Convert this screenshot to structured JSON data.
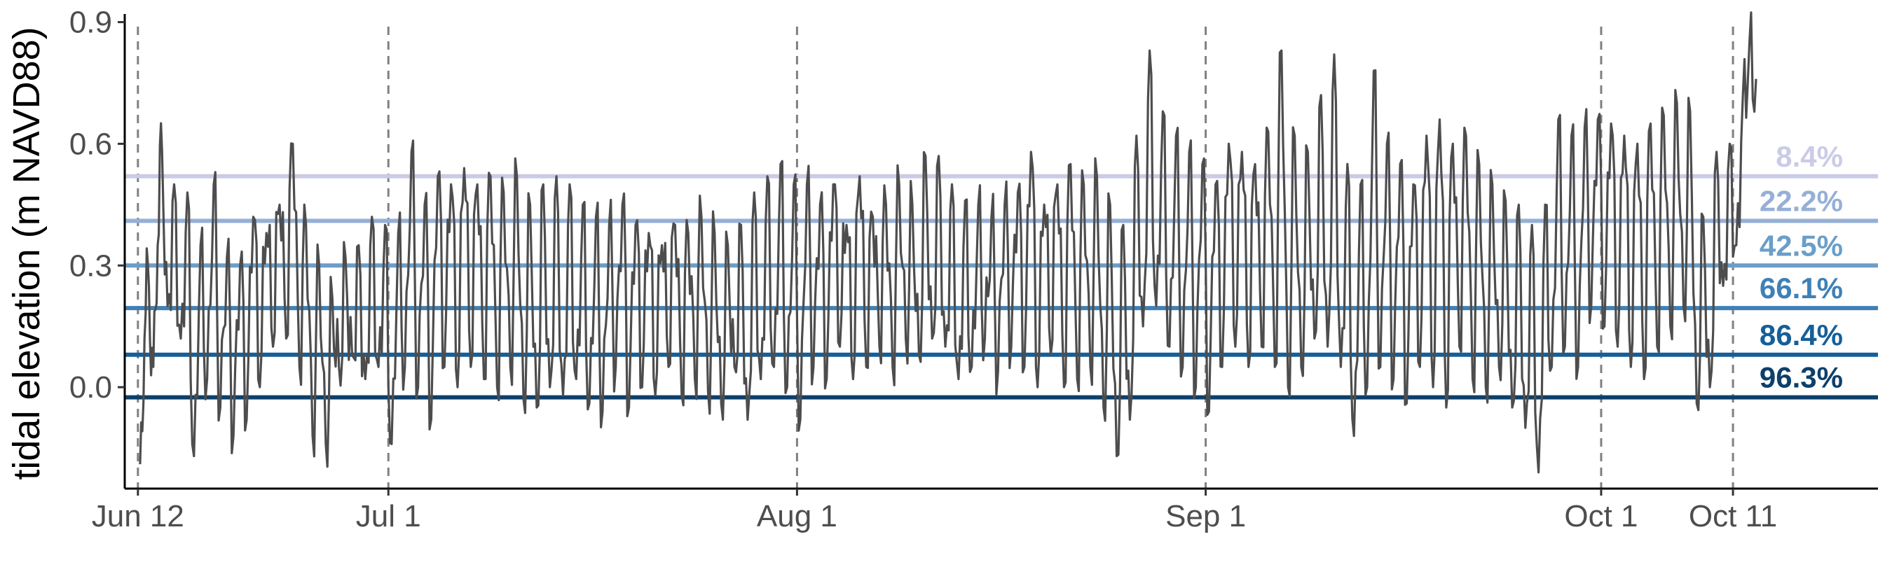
{
  "chart_data": {
    "type": "line",
    "title": "",
    "xlabel": "",
    "ylabel": "tidal elevation (m NAVD88)",
    "xlim": [
      "2024-06-11",
      "2024-10-22"
    ],
    "ylim": [
      -0.25,
      0.92
    ],
    "y_ticks": [
      0.0,
      0.3,
      0.6,
      0.9
    ],
    "y_tick_labels": [
      "0.0",
      "0.3",
      "0.6",
      "0.9"
    ],
    "x_ticks": [
      {
        "date": "2024-06-12",
        "label": "Jun 12"
      },
      {
        "date": "2024-07-01",
        "label": "Jul 1"
      },
      {
        "date": "2024-08-01",
        "label": "Aug 1"
      },
      {
        "date": "2024-09-01",
        "label": "Sep 1"
      },
      {
        "date": "2024-10-01",
        "label": "Oct 1"
      },
      {
        "date": "2024-10-11",
        "label": "Oct 11"
      }
    ],
    "vertical_reference_lines": [
      "2024-06-12",
      "2024-07-01",
      "2024-08-01",
      "2024-09-01",
      "2024-10-01",
      "2024-10-11"
    ],
    "series_color": "#4d4d4d",
    "series": [
      {
        "points": [
          [
            "2024-06-12",
            -0.19
          ],
          [
            "2024-06-12",
            0.12
          ],
          [
            "2024-06-12",
            0.25
          ],
          [
            "2024-06-13",
            0.05
          ],
          [
            "2024-06-13",
            0.35
          ],
          [
            "2024-06-13",
            0.58
          ],
          [
            "2024-06-14",
            0.2
          ],
          [
            "2024-06-14",
            0.5
          ],
          [
            "2024-06-15",
            0.12
          ],
          [
            "2024-06-15",
            0.48
          ],
          [
            "2024-06-16",
            -0.17
          ],
          [
            "2024-06-16",
            0.35
          ],
          [
            "2024-06-17",
            0.02
          ],
          [
            "2024-06-17",
            0.5
          ],
          [
            "2024-06-18",
            -0.05
          ],
          [
            "2024-06-18",
            0.32
          ],
          [
            "2024-06-19",
            -0.12
          ],
          [
            "2024-06-19",
            0.3
          ],
          [
            "2024-06-20",
            -0.08
          ],
          [
            "2024-06-20",
            0.42
          ],
          [
            "2024-06-21",
            0.0
          ],
          [
            "2024-06-21",
            0.38
          ],
          [
            "2024-06-22",
            0.1
          ],
          [
            "2024-06-22",
            0.45
          ],
          [
            "2024-06-23",
            0.12
          ],
          [
            "2024-06-23",
            0.6
          ],
          [
            "2024-06-24",
            0.05
          ],
          [
            "2024-06-24",
            0.4
          ],
          [
            "2024-06-25",
            -0.12
          ],
          [
            "2024-06-25",
            0.3
          ],
          [
            "2024-06-26",
            -0.14
          ],
          [
            "2024-06-26",
            0.22
          ],
          [
            "2024-06-27",
            0.05
          ],
          [
            "2024-06-27",
            0.32
          ],
          [
            "2024-06-28",
            0.08
          ],
          [
            "2024-06-28",
            0.35
          ],
          [
            "2024-06-29",
            0.02
          ],
          [
            "2024-06-29",
            0.42
          ],
          [
            "2024-06-30",
            0.05
          ],
          [
            "2024-06-30",
            0.4
          ],
          [
            "2024-07-01",
            -0.14
          ],
          [
            "2024-07-01",
            0.38
          ],
          [
            "2024-07-02",
            0.05
          ],
          [
            "2024-07-02",
            0.58
          ],
          [
            "2024-07-03",
            0.0
          ],
          [
            "2024-07-03",
            0.45
          ],
          [
            "2024-07-04",
            -0.08
          ],
          [
            "2024-07-04",
            0.52
          ],
          [
            "2024-07-05",
            0.05
          ],
          [
            "2024-07-05",
            0.5
          ],
          [
            "2024-07-06",
            0.0
          ],
          [
            "2024-07-06",
            0.54
          ],
          [
            "2024-07-07",
            0.05
          ],
          [
            "2024-07-07",
            0.5
          ],
          [
            "2024-07-08",
            0.02
          ],
          [
            "2024-07-08",
            0.52
          ],
          [
            "2024-07-09",
            0.0
          ],
          [
            "2024-07-09",
            0.48
          ],
          [
            "2024-07-10",
            0.05
          ],
          [
            "2024-07-10",
            0.52
          ],
          [
            "2024-07-11",
            -0.03
          ],
          [
            "2024-07-11",
            0.45
          ],
          [
            "2024-07-12",
            -0.05
          ],
          [
            "2024-07-12",
            0.5
          ],
          [
            "2024-07-13",
            0.0
          ],
          [
            "2024-07-13",
            0.52
          ],
          [
            "2024-07-14",
            -0.02
          ],
          [
            "2024-07-14",
            0.5
          ],
          [
            "2024-07-15",
            0.02
          ],
          [
            "2024-07-15",
            0.45
          ],
          [
            "2024-07-16",
            -0.04
          ],
          [
            "2024-07-16",
            0.42
          ],
          [
            "2024-07-17",
            -0.06
          ],
          [
            "2024-07-17",
            0.4
          ],
          [
            "2024-07-18",
            0.05
          ],
          [
            "2024-07-18",
            0.45
          ],
          [
            "2024-07-19",
            -0.05
          ],
          [
            "2024-07-19",
            0.4
          ],
          [
            "2024-07-20",
            0.0
          ],
          [
            "2024-07-20",
            0.38
          ],
          [
            "2024-07-21",
            -0.02
          ],
          [
            "2024-07-21",
            0.35
          ],
          [
            "2024-07-22",
            0.05
          ],
          [
            "2024-07-22",
            0.4
          ],
          [
            "2024-07-23",
            -0.02
          ],
          [
            "2024-07-23",
            0.38
          ],
          [
            "2024-07-24",
            0.02
          ],
          [
            "2024-07-24",
            0.42
          ],
          [
            "2024-07-25",
            -0.01
          ],
          [
            "2024-07-25",
            0.38
          ],
          [
            "2024-07-26",
            -0.04
          ],
          [
            "2024-07-26",
            0.35
          ],
          [
            "2024-07-27",
            0.05
          ],
          [
            "2024-07-27",
            0.4
          ],
          [
            "2024-07-28",
            -0.08
          ],
          [
            "2024-07-28",
            0.48
          ],
          [
            "2024-07-29",
            0.02
          ],
          [
            "2024-07-29",
            0.52
          ],
          [
            "2024-07-30",
            0.05
          ],
          [
            "2024-07-30",
            0.55
          ],
          [
            "2024-07-31",
            0.0
          ],
          [
            "2024-07-31",
            0.5
          ],
          [
            "2024-08-01",
            -0.08
          ],
          [
            "2024-08-01",
            0.5
          ],
          [
            "2024-08-02",
            0.05
          ],
          [
            "2024-08-02",
            0.45
          ],
          [
            "2024-08-03",
            0.02
          ],
          [
            "2024-08-03",
            0.5
          ],
          [
            "2024-08-04",
            0.1
          ],
          [
            "2024-08-04",
            0.4
          ],
          [
            "2024-08-05",
            0.02
          ],
          [
            "2024-08-05",
            0.52
          ],
          [
            "2024-08-06",
            0.05
          ],
          [
            "2024-08-06",
            0.42
          ],
          [
            "2024-08-07",
            0.1
          ],
          [
            "2024-08-07",
            0.45
          ],
          [
            "2024-08-08",
            0.05
          ],
          [
            "2024-08-08",
            0.5
          ],
          [
            "2024-08-09",
            0.12
          ],
          [
            "2024-08-09",
            0.45
          ],
          [
            "2024-08-10",
            0.08
          ],
          [
            "2024-08-10",
            0.57
          ],
          [
            "2024-08-11",
            0.12
          ],
          [
            "2024-08-11",
            0.57
          ],
          [
            "2024-08-12",
            0.1
          ],
          [
            "2024-08-12",
            0.5
          ],
          [
            "2024-08-13",
            0.02
          ],
          [
            "2024-08-13",
            0.46
          ],
          [
            "2024-08-14",
            0.05
          ],
          [
            "2024-08-14",
            0.45
          ],
          [
            "2024-08-15",
            0.12
          ],
          [
            "2024-08-15",
            0.42
          ],
          [
            "2024-08-16",
            0.04
          ],
          [
            "2024-08-16",
            0.45
          ],
          [
            "2024-08-17",
            0.1
          ],
          [
            "2024-08-17",
            0.48
          ],
          [
            "2024-08-18",
            0.05
          ],
          [
            "2024-08-18",
            0.58
          ],
          [
            "2024-08-19",
            0.0
          ],
          [
            "2024-08-19",
            0.45
          ],
          [
            "2024-08-20",
            0.08
          ],
          [
            "2024-08-20",
            0.5
          ],
          [
            "2024-08-21",
            0.0
          ],
          [
            "2024-08-21",
            0.55
          ],
          [
            "2024-08-22",
            0.02
          ],
          [
            "2024-08-22",
            0.5
          ],
          [
            "2024-08-23",
            0.05
          ],
          [
            "2024-08-23",
            0.52
          ],
          [
            "2024-08-24",
            -0.05
          ],
          [
            "2024-08-24",
            0.45
          ],
          [
            "2024-08-25",
            -0.17
          ],
          [
            "2024-08-25",
            0.4
          ],
          [
            "2024-08-26",
            -0.08
          ],
          [
            "2024-08-26",
            0.62
          ],
          [
            "2024-08-27",
            0.15
          ],
          [
            "2024-08-27",
            0.83
          ],
          [
            "2024-08-28",
            0.2
          ],
          [
            "2024-08-28",
            0.68
          ],
          [
            "2024-08-29",
            0.1
          ],
          [
            "2024-08-29",
            0.62
          ],
          [
            "2024-08-30",
            0.05
          ],
          [
            "2024-08-30",
            0.58
          ],
          [
            "2024-08-31",
            0.0
          ],
          [
            "2024-08-31",
            0.55
          ],
          [
            "2024-09-01",
            -0.06
          ],
          [
            "2024-09-01",
            0.5
          ],
          [
            "2024-09-02",
            0.05
          ],
          [
            "2024-09-02",
            0.6
          ],
          [
            "2024-09-03",
            0.1
          ],
          [
            "2024-09-03",
            0.58
          ],
          [
            "2024-09-04",
            0.05
          ],
          [
            "2024-09-04",
            0.55
          ],
          [
            "2024-09-05",
            0.1
          ],
          [
            "2024-09-05",
            0.63
          ],
          [
            "2024-09-06",
            0.05
          ],
          [
            "2024-09-06",
            0.83
          ],
          [
            "2024-09-07",
            0.0
          ],
          [
            "2024-09-07",
            0.62
          ],
          [
            "2024-09-08",
            0.05
          ],
          [
            "2024-09-08",
            0.58
          ],
          [
            "2024-09-09",
            0.12
          ],
          [
            "2024-09-09",
            0.72
          ],
          [
            "2024-09-10",
            0.1
          ],
          [
            "2024-09-10",
            0.82
          ],
          [
            "2024-09-11",
            0.05
          ],
          [
            "2024-09-11",
            0.55
          ],
          [
            "2024-09-12",
            -0.12
          ],
          [
            "2024-09-12",
            0.5
          ],
          [
            "2024-09-13",
            0.0
          ],
          [
            "2024-09-13",
            0.78
          ],
          [
            "2024-09-14",
            0.05
          ],
          [
            "2024-09-14",
            0.6
          ],
          [
            "2024-09-15",
            0.02
          ],
          [
            "2024-09-15",
            0.55
          ],
          [
            "2024-09-16",
            -0.04
          ],
          [
            "2024-09-16",
            0.5
          ],
          [
            "2024-09-17",
            0.05
          ],
          [
            "2024-09-17",
            0.62
          ],
          [
            "2024-09-18",
            0.0
          ],
          [
            "2024-09-18",
            0.66
          ],
          [
            "2024-09-19",
            -0.05
          ],
          [
            "2024-09-19",
            0.6
          ],
          [
            "2024-09-20",
            0.1
          ],
          [
            "2024-09-20",
            0.62
          ],
          [
            "2024-09-21",
            0.02
          ],
          [
            "2024-09-21",
            0.55
          ],
          [
            "2024-09-22",
            0.0
          ],
          [
            "2024-09-22",
            0.5
          ],
          [
            "2024-09-23",
            0.05
          ],
          [
            "2024-09-23",
            0.46
          ],
          [
            "2024-09-24",
            -0.05
          ],
          [
            "2024-09-24",
            0.45
          ],
          [
            "2024-09-25",
            -0.1
          ],
          [
            "2024-09-25",
            0.4
          ],
          [
            "2024-09-26",
            -0.21
          ],
          [
            "2024-09-26",
            0.45
          ],
          [
            "2024-09-27",
            0.05
          ],
          [
            "2024-09-27",
            0.66
          ],
          [
            "2024-09-28",
            0.1
          ],
          [
            "2024-09-28",
            0.62
          ],
          [
            "2024-09-29",
            0.05
          ],
          [
            "2024-09-29",
            0.64
          ],
          [
            "2024-09-30",
            0.2
          ],
          [
            "2024-09-30",
            0.66
          ],
          [
            "2024-10-01",
            0.15
          ],
          [
            "2024-10-01",
            0.65
          ],
          [
            "2024-10-02",
            0.1
          ],
          [
            "2024-10-02",
            0.62
          ],
          [
            "2024-10-03",
            0.05
          ],
          [
            "2024-10-03",
            0.6
          ],
          [
            "2024-10-04",
            0.02
          ],
          [
            "2024-10-04",
            0.65
          ],
          [
            "2024-10-05",
            0.1
          ],
          [
            "2024-10-05",
            0.67
          ],
          [
            "2024-10-06",
            0.15
          ],
          [
            "2024-10-06",
            0.7
          ],
          [
            "2024-10-07",
            0.2
          ],
          [
            "2024-10-07",
            0.68
          ],
          [
            "2024-10-08",
            -0.04
          ],
          [
            "2024-10-08",
            0.42
          ],
          [
            "2024-10-09",
            0.0
          ],
          [
            "2024-10-09",
            0.58
          ],
          [
            "2024-10-10",
            0.25
          ],
          [
            "2024-10-10",
            0.6
          ],
          [
            "2024-10-11",
            0.35
          ],
          [
            "2024-10-11",
            0.72
          ],
          [
            "2024-10-12",
            0.85
          ],
          [
            "2024-10-12",
            0.76
          ]
        ]
      }
    ],
    "threshold_lines": [
      {
        "value": 0.52,
        "label": "8.4%",
        "color": "#cacbe5"
      },
      {
        "value": 0.41,
        "label": "22.2%",
        "color": "#96afd6"
      },
      {
        "value": 0.3,
        "label": "42.5%",
        "color": "#6b9ec9"
      },
      {
        "value": 0.195,
        "label": "66.1%",
        "color": "#3f80b6"
      },
      {
        "value": 0.08,
        "label": "86.4%",
        "color": "#155f99"
      },
      {
        "value": -0.025,
        "label": "96.3%",
        "color": "#0d3f6b"
      }
    ],
    "grid": false,
    "legend": "none"
  }
}
